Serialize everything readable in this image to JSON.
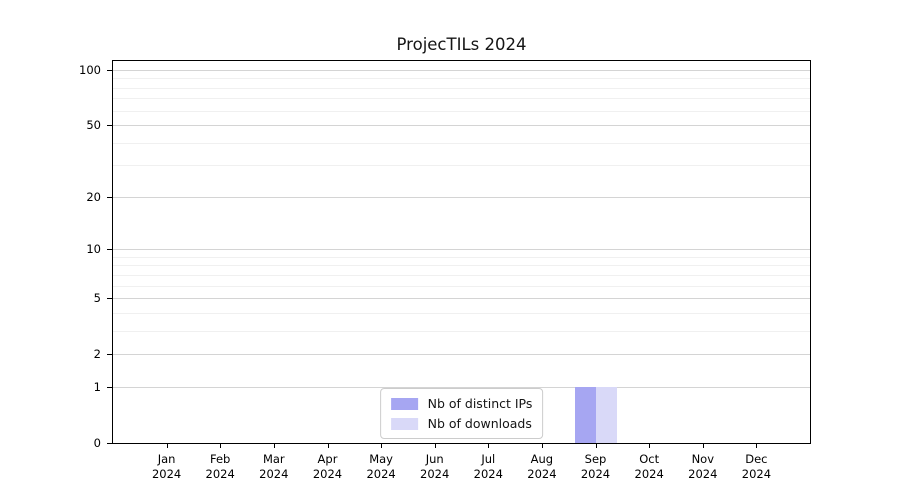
{
  "chart_data": {
    "type": "bar",
    "title": "ProjecTILs 2024",
    "xlabel": "",
    "ylabel": "",
    "categories": [
      "Jan",
      "Feb",
      "Mar",
      "Apr",
      "May",
      "Jun",
      "Jul",
      "Aug",
      "Sep",
      "Oct",
      "Nov",
      "Dec"
    ],
    "year_label": "2024",
    "series": [
      {
        "name": "Nb of distinct IPs",
        "color": "#a6a6f2",
        "values": [
          0,
          0,
          0,
          0,
          0,
          0,
          0,
          0,
          1,
          0,
          0,
          0
        ]
      },
      {
        "name": "Nb of downloads",
        "color": "#d9d9f8",
        "values": [
          0,
          0,
          0,
          0,
          0,
          0,
          0,
          0,
          1,
          0,
          0,
          0
        ]
      }
    ],
    "y_axis": {
      "scale": "log1p",
      "ticks": [
        0,
        1,
        2,
        5,
        10,
        20,
        50,
        100
      ],
      "minor_gridlines": [
        3,
        4,
        6,
        7,
        8,
        9,
        30,
        40,
        60,
        70,
        80,
        90
      ],
      "ylim": [
        0,
        112
      ]
    },
    "grid": "horizontal",
    "legend_position": "lower center"
  },
  "colors": {
    "bar_distinct_ips": "#a6a6f2",
    "bar_downloads": "#d9d9f8",
    "grid_major": "#d4d4d4",
    "grid_minor": "#f0f0f0",
    "axis_spine": "#000000",
    "legend_border": "#cccccc",
    "background": "#ffffff"
  }
}
